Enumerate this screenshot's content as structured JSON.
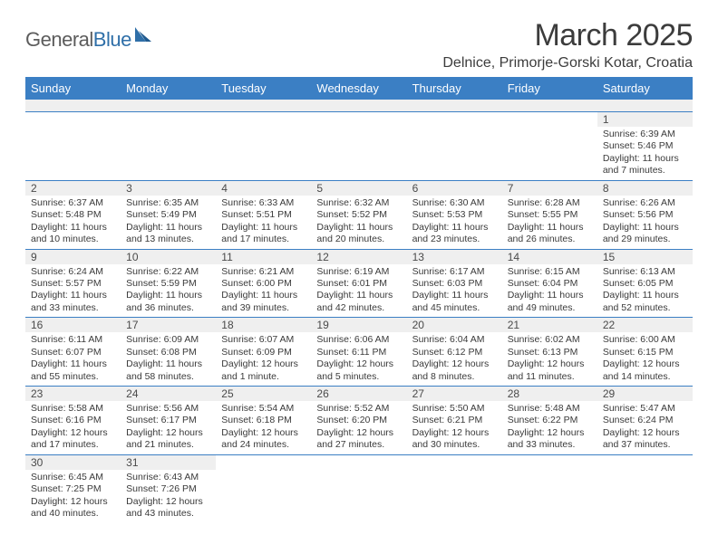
{
  "logo": {
    "part1": "General",
    "part2": "Blue"
  },
  "colors": {
    "headerBar": "#3b7fc4",
    "grayBar": "#efefef",
    "text": "#3a3a3a",
    "logoGray": "#5c5c5c",
    "logoBlue": "#2f6fa8"
  },
  "title": "March 2025",
  "location": "Delnice, Primorje-Gorski Kotar, Croatia",
  "weekdays": [
    "Sunday",
    "Monday",
    "Tuesday",
    "Wednesday",
    "Thursday",
    "Friday",
    "Saturday"
  ],
  "weeks": [
    [
      null,
      null,
      null,
      null,
      null,
      null,
      {
        "n": "1",
        "sr": "Sunrise: 6:39 AM",
        "ss": "Sunset: 5:46 PM",
        "dl1": "Daylight: 11 hours",
        "dl2": "and 7 minutes."
      }
    ],
    [
      {
        "n": "2",
        "sr": "Sunrise: 6:37 AM",
        "ss": "Sunset: 5:48 PM",
        "dl1": "Daylight: 11 hours",
        "dl2": "and 10 minutes."
      },
      {
        "n": "3",
        "sr": "Sunrise: 6:35 AM",
        "ss": "Sunset: 5:49 PM",
        "dl1": "Daylight: 11 hours",
        "dl2": "and 13 minutes."
      },
      {
        "n": "4",
        "sr": "Sunrise: 6:33 AM",
        "ss": "Sunset: 5:51 PM",
        "dl1": "Daylight: 11 hours",
        "dl2": "and 17 minutes."
      },
      {
        "n": "5",
        "sr": "Sunrise: 6:32 AM",
        "ss": "Sunset: 5:52 PM",
        "dl1": "Daylight: 11 hours",
        "dl2": "and 20 minutes."
      },
      {
        "n": "6",
        "sr": "Sunrise: 6:30 AM",
        "ss": "Sunset: 5:53 PM",
        "dl1": "Daylight: 11 hours",
        "dl2": "and 23 minutes."
      },
      {
        "n": "7",
        "sr": "Sunrise: 6:28 AM",
        "ss": "Sunset: 5:55 PM",
        "dl1": "Daylight: 11 hours",
        "dl2": "and 26 minutes."
      },
      {
        "n": "8",
        "sr": "Sunrise: 6:26 AM",
        "ss": "Sunset: 5:56 PM",
        "dl1": "Daylight: 11 hours",
        "dl2": "and 29 minutes."
      }
    ],
    [
      {
        "n": "9",
        "sr": "Sunrise: 6:24 AM",
        "ss": "Sunset: 5:57 PM",
        "dl1": "Daylight: 11 hours",
        "dl2": "and 33 minutes."
      },
      {
        "n": "10",
        "sr": "Sunrise: 6:22 AM",
        "ss": "Sunset: 5:59 PM",
        "dl1": "Daylight: 11 hours",
        "dl2": "and 36 minutes."
      },
      {
        "n": "11",
        "sr": "Sunrise: 6:21 AM",
        "ss": "Sunset: 6:00 PM",
        "dl1": "Daylight: 11 hours",
        "dl2": "and 39 minutes."
      },
      {
        "n": "12",
        "sr": "Sunrise: 6:19 AM",
        "ss": "Sunset: 6:01 PM",
        "dl1": "Daylight: 11 hours",
        "dl2": "and 42 minutes."
      },
      {
        "n": "13",
        "sr": "Sunrise: 6:17 AM",
        "ss": "Sunset: 6:03 PM",
        "dl1": "Daylight: 11 hours",
        "dl2": "and 45 minutes."
      },
      {
        "n": "14",
        "sr": "Sunrise: 6:15 AM",
        "ss": "Sunset: 6:04 PM",
        "dl1": "Daylight: 11 hours",
        "dl2": "and 49 minutes."
      },
      {
        "n": "15",
        "sr": "Sunrise: 6:13 AM",
        "ss": "Sunset: 6:05 PM",
        "dl1": "Daylight: 11 hours",
        "dl2": "and 52 minutes."
      }
    ],
    [
      {
        "n": "16",
        "sr": "Sunrise: 6:11 AM",
        "ss": "Sunset: 6:07 PM",
        "dl1": "Daylight: 11 hours",
        "dl2": "and 55 minutes."
      },
      {
        "n": "17",
        "sr": "Sunrise: 6:09 AM",
        "ss": "Sunset: 6:08 PM",
        "dl1": "Daylight: 11 hours",
        "dl2": "and 58 minutes."
      },
      {
        "n": "18",
        "sr": "Sunrise: 6:07 AM",
        "ss": "Sunset: 6:09 PM",
        "dl1": "Daylight: 12 hours",
        "dl2": "and 1 minute."
      },
      {
        "n": "19",
        "sr": "Sunrise: 6:06 AM",
        "ss": "Sunset: 6:11 PM",
        "dl1": "Daylight: 12 hours",
        "dl2": "and 5 minutes."
      },
      {
        "n": "20",
        "sr": "Sunrise: 6:04 AM",
        "ss": "Sunset: 6:12 PM",
        "dl1": "Daylight: 12 hours",
        "dl2": "and 8 minutes."
      },
      {
        "n": "21",
        "sr": "Sunrise: 6:02 AM",
        "ss": "Sunset: 6:13 PM",
        "dl1": "Daylight: 12 hours",
        "dl2": "and 11 minutes."
      },
      {
        "n": "22",
        "sr": "Sunrise: 6:00 AM",
        "ss": "Sunset: 6:15 PM",
        "dl1": "Daylight: 12 hours",
        "dl2": "and 14 minutes."
      }
    ],
    [
      {
        "n": "23",
        "sr": "Sunrise: 5:58 AM",
        "ss": "Sunset: 6:16 PM",
        "dl1": "Daylight: 12 hours",
        "dl2": "and 17 minutes."
      },
      {
        "n": "24",
        "sr": "Sunrise: 5:56 AM",
        "ss": "Sunset: 6:17 PM",
        "dl1": "Daylight: 12 hours",
        "dl2": "and 21 minutes."
      },
      {
        "n": "25",
        "sr": "Sunrise: 5:54 AM",
        "ss": "Sunset: 6:18 PM",
        "dl1": "Daylight: 12 hours",
        "dl2": "and 24 minutes."
      },
      {
        "n": "26",
        "sr": "Sunrise: 5:52 AM",
        "ss": "Sunset: 6:20 PM",
        "dl1": "Daylight: 12 hours",
        "dl2": "and 27 minutes."
      },
      {
        "n": "27",
        "sr": "Sunrise: 5:50 AM",
        "ss": "Sunset: 6:21 PM",
        "dl1": "Daylight: 12 hours",
        "dl2": "and 30 minutes."
      },
      {
        "n": "28",
        "sr": "Sunrise: 5:48 AM",
        "ss": "Sunset: 6:22 PM",
        "dl1": "Daylight: 12 hours",
        "dl2": "and 33 minutes."
      },
      {
        "n": "29",
        "sr": "Sunrise: 5:47 AM",
        "ss": "Sunset: 6:24 PM",
        "dl1": "Daylight: 12 hours",
        "dl2": "and 37 minutes."
      }
    ],
    [
      {
        "n": "30",
        "sr": "Sunrise: 6:45 AM",
        "ss": "Sunset: 7:25 PM",
        "dl1": "Daylight: 12 hours",
        "dl2": "and 40 minutes."
      },
      {
        "n": "31",
        "sr": "Sunrise: 6:43 AM",
        "ss": "Sunset: 7:26 PM",
        "dl1": "Daylight: 12 hours",
        "dl2": "and 43 minutes."
      },
      null,
      null,
      null,
      null,
      null
    ]
  ]
}
